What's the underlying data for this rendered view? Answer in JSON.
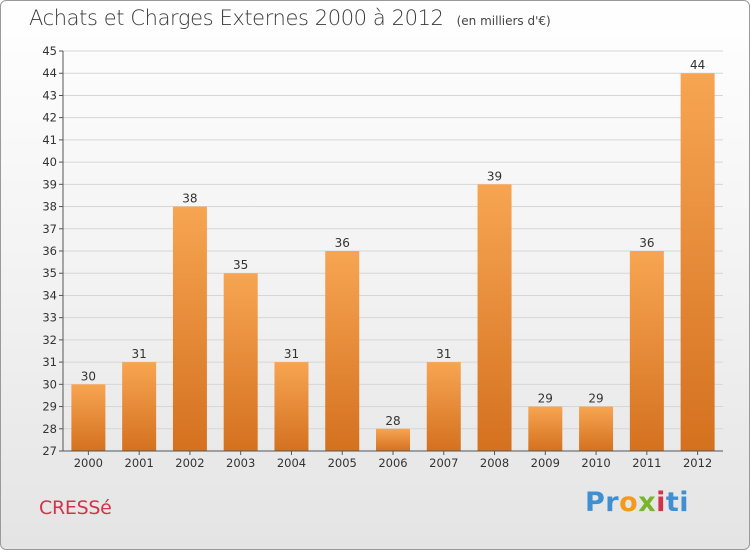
{
  "title": "Achats et Charges Externes 2000 à 2012",
  "subtitle": "(en milliers d'€)",
  "commune": "CRESSé",
  "logo": {
    "text": "Proxiti",
    "letter_colors": [
      "#3f8fd2",
      "#3f8fd2",
      "#f39a1e",
      "#79b42b",
      "#d2334a",
      "#3f8fd2",
      "#3f8fd2"
    ]
  },
  "colors": {
    "bar_light": "#f7a552",
    "bar_dark": "#d4711f",
    "grid": "#d6d6d6",
    "axis": "#555555"
  },
  "chart_data": {
    "type": "bar",
    "title": "Achats et Charges Externes 2000 à 2012",
    "xlabel": "",
    "ylabel": "",
    "categories": [
      "2000",
      "2001",
      "2002",
      "2003",
      "2004",
      "2005",
      "2006",
      "2007",
      "2008",
      "2009",
      "2010",
      "2011",
      "2012"
    ],
    "values": [
      30,
      31,
      38,
      35,
      31,
      36,
      28,
      31,
      39,
      29,
      29,
      36,
      44
    ],
    "ylim": [
      27,
      45
    ],
    "yticks": [
      27,
      28,
      29,
      30,
      31,
      32,
      33,
      34,
      35,
      36,
      37,
      38,
      39,
      40,
      41,
      42,
      43,
      44,
      45
    ],
    "grid": true,
    "data_labels": true
  }
}
